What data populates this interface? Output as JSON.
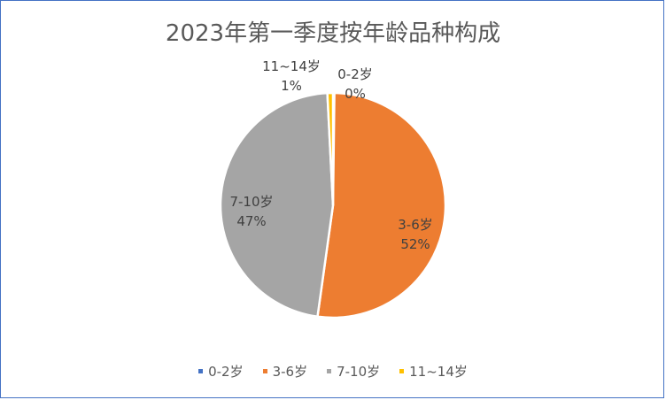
{
  "chart_data": {
    "type": "pie",
    "title": "2023年第一季度按年龄品种构成",
    "categories": [
      "0-2岁",
      "3-6岁",
      "7-10岁",
      "11~14岁"
    ],
    "values": [
      0.2,
      52,
      47,
      0.8
    ],
    "data_labels": [
      "0%",
      "52%",
      "47%",
      "1%"
    ],
    "colors": [
      "#4472c4",
      "#ed7d31",
      "#a5a5a5",
      "#ffc000"
    ],
    "legend_position": "bottom"
  }
}
